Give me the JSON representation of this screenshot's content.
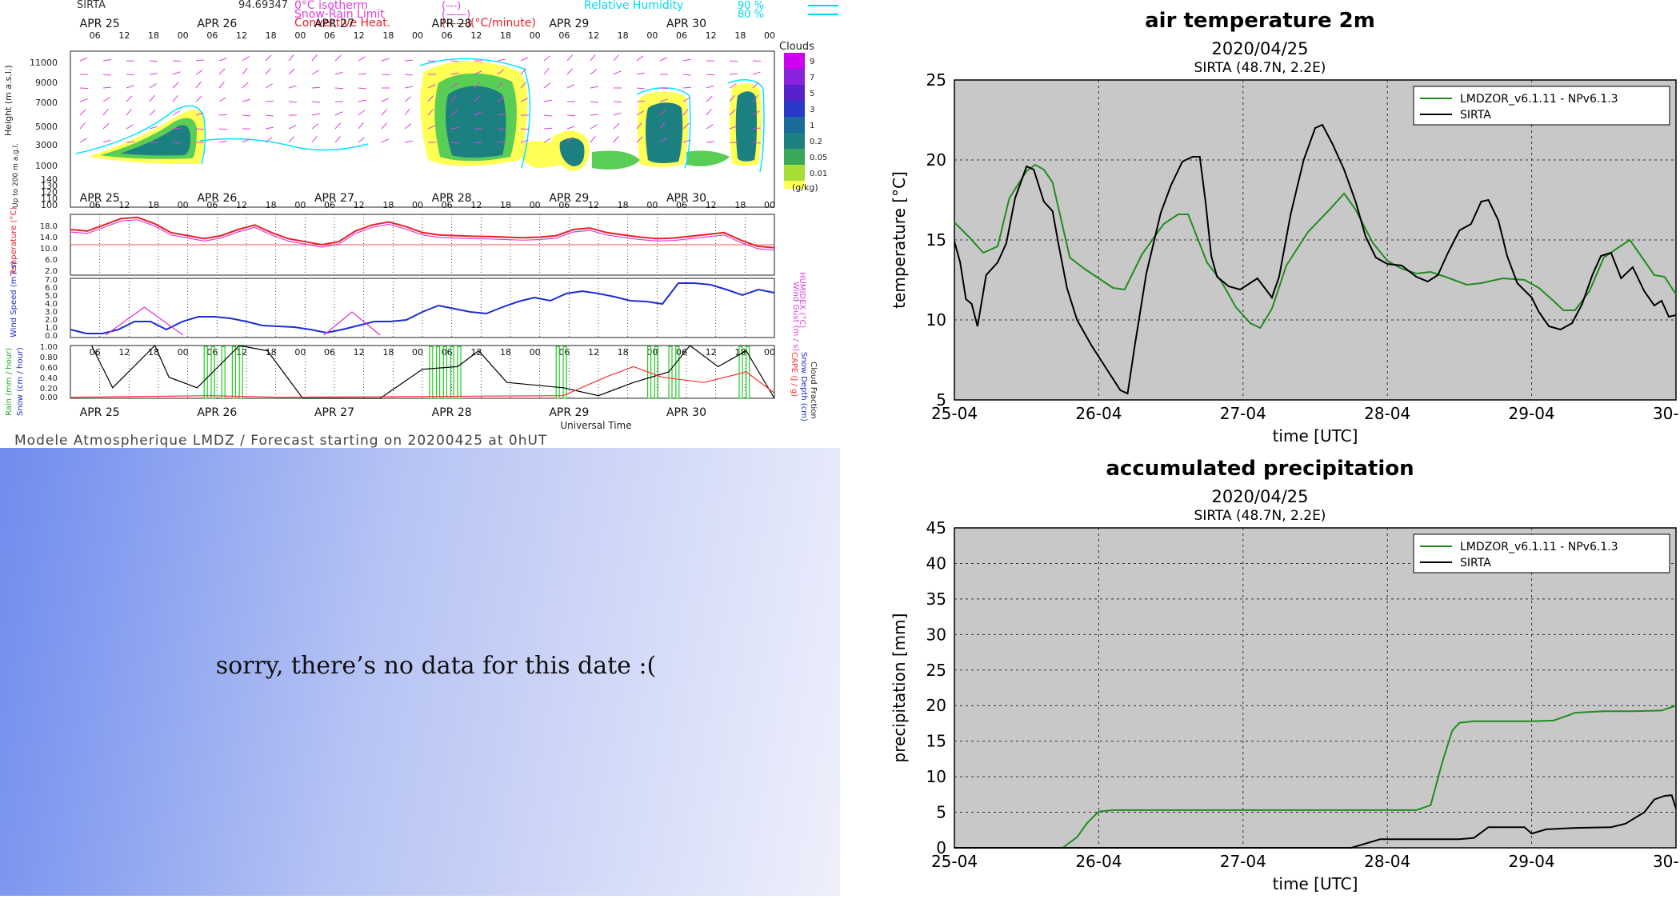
{
  "meteogram": {
    "station": "SIRTA",
    "header_value": "94.69347",
    "legend_left": [
      "0°C isotherm",
      "Snow-Rain Limit",
      "Convective Heat."
    ],
    "legend_unit": "(°C/minute)",
    "legend_right": [
      "Relative Humidity",
      "90 %",
      "80 %"
    ],
    "days": [
      "APR 25",
      "APR 26",
      "APR 27",
      "APR 28",
      "APR 29",
      "APR 30"
    ],
    "hours": [
      "06",
      "12",
      "18",
      "00"
    ],
    "height_ticks": [
      "11000",
      "9000",
      "7000",
      "5000",
      "3000",
      "1000",
      "140",
      "130",
      "120",
      "110",
      "100"
    ],
    "height_label": "Height (m a.s.l.)",
    "height_label2": "Up to 200 m a.g.l.",
    "clouds_title": "Clouds",
    "clouds_scale": [
      "9",
      "7",
      "5",
      "3",
      "1",
      "0.2",
      "0.05",
      "0.01"
    ],
    "clouds_unit": "(g/kg)",
    "temp_ticks": [
      "18.0",
      "14.0",
      "10.0",
      "6.0",
      "2.0"
    ],
    "wind_ticks": [
      "7.0",
      "6.0",
      "5.0",
      "4.0",
      "3.0",
      "2.0",
      "1.0",
      "0.0"
    ],
    "rain_ticks": [
      "1.00",
      "0.80",
      "0.60",
      "0.40",
      "0.20",
      "0.00"
    ],
    "left_labels": [
      "Temperature (°C)",
      "Wind Speed (m / s)",
      "Rain (mm / hour)",
      "Snow (cm / hour)"
    ],
    "right_labels": [
      "HUMIDEX (°C)",
      "Wind Gust (m / s)",
      "CAPE (J / g)",
      "Snow Depth (cm)",
      "Cloud Fraction"
    ],
    "xlabel": "Universal Time",
    "footer": "Modele Atmospherique LMDZ / Forecast starting on 20200425 at 0hUT",
    "colors": {
      "temp": "#e8202a",
      "humidex": "#dd40dd",
      "wind": "#1d2cd6",
      "gust": "#e02ed8",
      "rain": "#22cc22",
      "cloud": "#000000",
      "cape": "#ff3030",
      "rh": "#00e5ff"
    }
  },
  "no_data": {
    "message": "sorry, there’s no data for this date  :("
  },
  "chart_data": [
    {
      "type": "line",
      "title": "air temperature 2m",
      "subtitle_date": "2020/04/25",
      "subtitle_site": "SIRTA (48.7N, 2.2E)",
      "xlabel": "time [UTC]",
      "ylabel": "temperature [°C]",
      "x_ticks": [
        "25-04",
        "26-04",
        "27-04",
        "28-04",
        "29-04",
        "30-04"
      ],
      "y_ticks": [
        "5",
        "10",
        "15",
        "20",
        "25"
      ],
      "xlim": [
        0,
        5
      ],
      "ylim": [
        5,
        25
      ],
      "grid": true,
      "legend_position": "top-right",
      "series": [
        {
          "name": "LMDZOR_v6.1.11 - NPv6.1.3",
          "color": "#228b22",
          "points": [
            [
              0,
              16.1
            ],
            [
              0.1,
              15.2
            ],
            [
              0.2,
              14.2
            ],
            [
              0.3,
              14.6
            ],
            [
              0.38,
              17.6
            ],
            [
              0.45,
              18.6
            ],
            [
              0.5,
              19.3
            ],
            [
              0.56,
              19.7
            ],
            [
              0.62,
              19.4
            ],
            [
              0.68,
              18.6
            ],
            [
              0.8,
              13.9
            ],
            [
              0.9,
              13.2
            ],
            [
              1.0,
              12.6
            ],
            [
              1.1,
              12.0
            ],
            [
              1.18,
              11.9
            ],
            [
              1.3,
              14.1
            ],
            [
              1.45,
              16.0
            ],
            [
              1.55,
              16.6
            ],
            [
              1.62,
              16.6
            ],
            [
              1.75,
              13.6
            ],
            [
              1.85,
              12.4
            ],
            [
              1.95,
              10.8
            ],
            [
              2.05,
              9.8
            ],
            [
              2.12,
              9.5
            ],
            [
              2.2,
              10.7
            ],
            [
              2.3,
              13.4
            ],
            [
              2.45,
              15.5
            ],
            [
              2.6,
              16.9
            ],
            [
              2.7,
              17.9
            ],
            [
              2.78,
              16.9
            ],
            [
              2.9,
              14.8
            ],
            [
              3.0,
              13.7
            ],
            [
              3.1,
              13.2
            ],
            [
              3.2,
              12.9
            ],
            [
              3.3,
              13.0
            ],
            [
              3.4,
              12.7
            ],
            [
              3.55,
              12.2
            ],
            [
              3.65,
              12.3
            ],
            [
              3.8,
              12.6
            ],
            [
              3.95,
              12.5
            ],
            [
              4.05,
              12.0
            ],
            [
              4.15,
              11.2
            ],
            [
              4.22,
              10.6
            ],
            [
              4.3,
              10.6
            ],
            [
              4.4,
              11.8
            ],
            [
              4.5,
              13.9
            ],
            [
              4.58,
              14.4
            ],
            [
              4.68,
              15.0
            ],
            [
              4.75,
              14.1
            ],
            [
              4.85,
              12.8
            ],
            [
              4.92,
              12.7
            ],
            [
              5.0,
              11.6
            ]
          ]
        },
        {
          "name": "SIRTA",
          "color": "#000000",
          "points": [
            [
              0,
              14.9
            ],
            [
              0.04,
              13.6
            ],
            [
              0.08,
              11.3
            ],
            [
              0.12,
              11.0
            ],
            [
              0.16,
              9.6
            ],
            [
              0.22,
              12.8
            ],
            [
              0.3,
              13.6
            ],
            [
              0.36,
              14.8
            ],
            [
              0.42,
              17.6
            ],
            [
              0.5,
              19.6
            ],
            [
              0.55,
              19.4
            ],
            [
              0.62,
              17.4
            ],
            [
              0.68,
              16.8
            ],
            [
              0.72,
              14.8
            ],
            [
              0.78,
              12.0
            ],
            [
              0.85,
              10.0
            ],
            [
              0.95,
              8.4
            ],
            [
              1.05,
              7.0
            ],
            [
              1.15,
              5.6
            ],
            [
              1.2,
              5.4
            ],
            [
              1.25,
              8.4
            ],
            [
              1.33,
              12.9
            ],
            [
              1.43,
              16.7
            ],
            [
              1.5,
              18.4
            ],
            [
              1.58,
              19.9
            ],
            [
              1.65,
              20.2
            ],
            [
              1.7,
              20.2
            ],
            [
              1.74,
              17.4
            ],
            [
              1.78,
              14.0
            ],
            [
              1.82,
              12.7
            ],
            [
              1.9,
              12.1
            ],
            [
              1.98,
              11.9
            ],
            [
              2.1,
              12.6
            ],
            [
              2.2,
              11.4
            ],
            [
              2.25,
              12.7
            ],
            [
              2.33,
              16.6
            ],
            [
              2.42,
              20.0
            ],
            [
              2.5,
              22.0
            ],
            [
              2.55,
              22.2
            ],
            [
              2.62,
              21.0
            ],
            [
              2.7,
              19.4
            ],
            [
              2.78,
              17.4
            ],
            [
              2.85,
              15.2
            ],
            [
              2.92,
              13.9
            ],
            [
              3.0,
              13.5
            ],
            [
              3.1,
              13.4
            ],
            [
              3.2,
              12.7
            ],
            [
              3.28,
              12.4
            ],
            [
              3.35,
              12.8
            ],
            [
              3.42,
              14.2
            ],
            [
              3.5,
              15.6
            ],
            [
              3.58,
              16.0
            ],
            [
              3.65,
              17.4
            ],
            [
              3.7,
              17.5
            ],
            [
              3.77,
              16.2
            ],
            [
              3.83,
              14.0
            ],
            [
              3.9,
              12.3
            ],
            [
              4.0,
              11.4
            ],
            [
              4.05,
              10.5
            ],
            [
              4.12,
              9.6
            ],
            [
              4.2,
              9.4
            ],
            [
              4.28,
              9.8
            ],
            [
              4.35,
              11.0
            ],
            [
              4.42,
              12.8
            ],
            [
              4.48,
              14.0
            ],
            [
              4.55,
              14.2
            ],
            [
              4.62,
              12.6
            ],
            [
              4.7,
              13.3
            ],
            [
              4.78,
              11.8
            ],
            [
              4.85,
              10.9
            ],
            [
              4.9,
              11.2
            ],
            [
              4.95,
              10.2
            ],
            [
              5.0,
              10.3
            ]
          ]
        }
      ]
    },
    {
      "type": "line",
      "title": "accumulated precipitation",
      "subtitle_date": "2020/04/25",
      "subtitle_site": "SIRTA (48.7N, 2.2E)",
      "xlabel": "time [UTC]",
      "ylabel": "precipitation [mm]",
      "x_ticks": [
        "25-04",
        "26-04",
        "27-04",
        "28-04",
        "29-04",
        "30-04"
      ],
      "y_ticks": [
        "0",
        "5",
        "10",
        "15",
        "20",
        "25",
        "30",
        "35",
        "40",
        "45"
      ],
      "xlim": [
        0,
        5
      ],
      "ylim": [
        0,
        45
      ],
      "grid": true,
      "legend_position": "top-right",
      "series": [
        {
          "name": "LMDZOR_v6.1.11 - NPv6.1.3",
          "color": "#228b22",
          "points": [
            [
              0,
              0
            ],
            [
              0.75,
              0
            ],
            [
              0.85,
              1.5
            ],
            [
              0.92,
              3.5
            ],
            [
              1.0,
              5.1
            ],
            [
              1.1,
              5.3
            ],
            [
              2.0,
              5.3
            ],
            [
              3.0,
              5.3
            ],
            [
              3.2,
              5.3
            ],
            [
              3.3,
              6.0
            ],
            [
              3.38,
              12.0
            ],
            [
              3.45,
              16.5
            ],
            [
              3.5,
              17.6
            ],
            [
              3.6,
              17.8
            ],
            [
              4.0,
              17.8
            ],
            [
              4.15,
              17.9
            ],
            [
              4.25,
              18.6
            ],
            [
              4.3,
              19.0
            ],
            [
              4.5,
              19.2
            ],
            [
              4.7,
              19.2
            ],
            [
              4.9,
              19.3
            ],
            [
              5.0,
              20.0
            ]
          ]
        },
        {
          "name": "SIRTA",
          "color": "#000000",
          "points": [
            [
              0,
              0
            ],
            [
              2.75,
              0
            ],
            [
              2.85,
              0.6
            ],
            [
              2.95,
              1.2
            ],
            [
              3.3,
              1.2
            ],
            [
              3.5,
              1.2
            ],
            [
              3.6,
              1.4
            ],
            [
              3.7,
              2.9
            ],
            [
              3.95,
              2.9
            ],
            [
              4.0,
              2.0
            ],
            [
              4.1,
              2.6
            ],
            [
              4.3,
              2.8
            ],
            [
              4.55,
              2.9
            ],
            [
              4.65,
              3.4
            ],
            [
              4.78,
              5.0
            ],
            [
              4.85,
              6.8
            ],
            [
              4.92,
              7.3
            ],
            [
              4.97,
              7.4
            ],
            [
              5.0,
              5.5
            ]
          ]
        }
      ]
    }
  ]
}
